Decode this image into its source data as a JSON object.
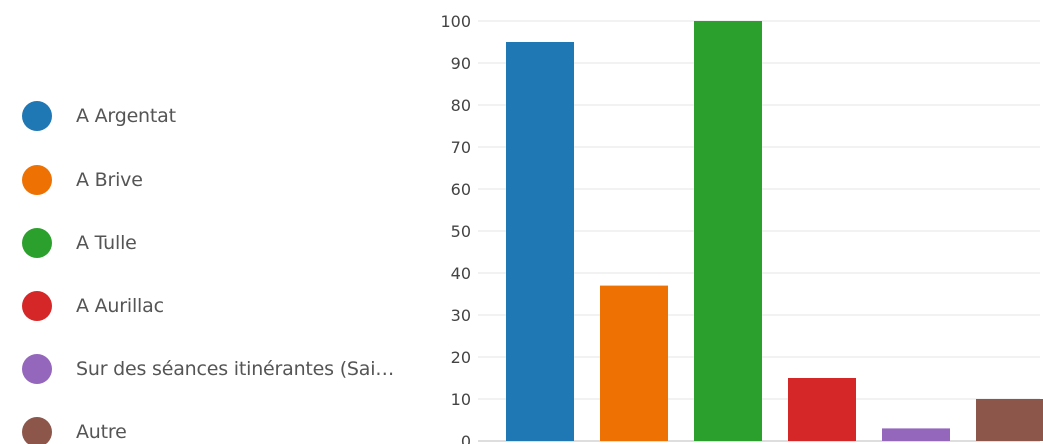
{
  "chart_data": {
    "type": "bar",
    "categories": [
      "A Argentat",
      "A Brive",
      "A Tulle",
      "A Aurillac",
      "Sur des séances itinérantes (Sai…",
      "Autre"
    ],
    "values": [
      95,
      37,
      100,
      15,
      3,
      10
    ],
    "colors": [
      "#1f77b4",
      "#ee7203",
      "#2ca02c",
      "#d62728",
      "#9467bd",
      "#8c564b"
    ],
    "ylim": [
      0,
      100
    ],
    "yticks": [
      0,
      10,
      20,
      30,
      40,
      50,
      60,
      70,
      80,
      90,
      100
    ],
    "grid": true,
    "legend_position": "left",
    "title": "",
    "xlabel": "",
    "ylabel": ""
  }
}
